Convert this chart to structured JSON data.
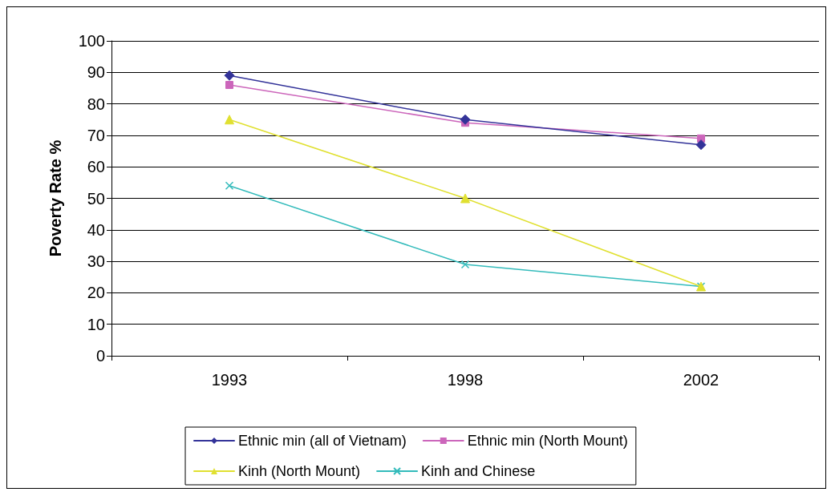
{
  "chart_data": {
    "type": "line",
    "ylabel": "Poverty Rate %",
    "categories": [
      "1993",
      "1998",
      "2002"
    ],
    "series": [
      {
        "name": "Ethnic min (all of Vietnam)",
        "color": "#333399",
        "marker": "diamond",
        "values": [
          89,
          75,
          67
        ]
      },
      {
        "name": "Ethnic min (North Mount)",
        "color": "#cc66bb",
        "marker": "square",
        "values": [
          86,
          74,
          69
        ]
      },
      {
        "name": "Kinh (North Mount)",
        "color": "#e0e030",
        "marker": "triangle",
        "values": [
          75,
          50,
          22
        ]
      },
      {
        "name": "Kinh and Chinese",
        "color": "#33bbbb",
        "marker": "cross",
        "values": [
          54,
          29,
          22
        ]
      }
    ],
    "ylim": [
      0,
      100
    ],
    "yticks": [
      0,
      10,
      20,
      30,
      40,
      50,
      60,
      70,
      80,
      90,
      100
    ],
    "grid": "y",
    "legend": "bottom",
    "line_style": "solid"
  }
}
